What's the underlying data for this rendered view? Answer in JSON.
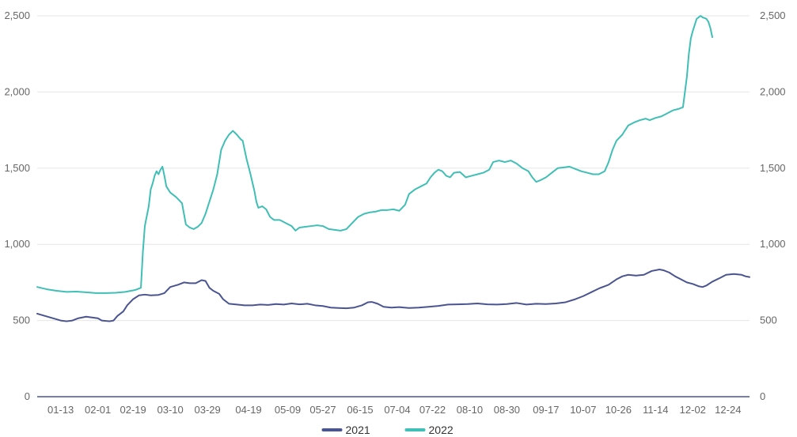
{
  "chart_data": {
    "type": "line",
    "title": "",
    "xlabel": "",
    "ylabel": "",
    "ylim": [
      0,
      2500
    ],
    "yticks": [
      0,
      500,
      1000,
      1500,
      2000,
      2500
    ],
    "ytick_labels": [
      "0",
      "500",
      "1,000",
      "1,500",
      "2,000",
      "2,500"
    ],
    "x_range_days": [
      0,
      364
    ],
    "x_tick_positions": [
      12,
      31,
      49,
      68,
      87,
      108,
      128,
      146,
      165,
      184,
      202,
      221,
      240,
      260,
      279,
      297,
      316,
      335,
      353
    ],
    "xtick_labels": [
      "01-13",
      "02-01",
      "02-19",
      "03-10",
      "03-29",
      "04-19",
      "05-09",
      "05-27",
      "06-15",
      "07-04",
      "07-22",
      "08-10",
      "08-30",
      "09-17",
      "10-07",
      "10-26",
      "11-14",
      "12-02",
      "12-24"
    ],
    "grid": true,
    "legend_position": "bottom",
    "series": [
      {
        "name": "2021",
        "color": "#4a5490",
        "points": [
          [
            0,
            545
          ],
          [
            4,
            530
          ],
          [
            8,
            515
          ],
          [
            12,
            500
          ],
          [
            15,
            495
          ],
          [
            18,
            500
          ],
          [
            21,
            515
          ],
          [
            25,
            525
          ],
          [
            28,
            520
          ],
          [
            31,
            515
          ],
          [
            33,
            500
          ],
          [
            37,
            495
          ],
          [
            39,
            500
          ],
          [
            41,
            530
          ],
          [
            44,
            560
          ],
          [
            46,
            600
          ],
          [
            49,
            640
          ],
          [
            52,
            665
          ],
          [
            55,
            670
          ],
          [
            58,
            665
          ],
          [
            62,
            668
          ],
          [
            65,
            680
          ],
          [
            68,
            720
          ],
          [
            72,
            735
          ],
          [
            75,
            750
          ],
          [
            78,
            745
          ],
          [
            81,
            745
          ],
          [
            84,
            765
          ],
          [
            86,
            760
          ],
          [
            88,
            715
          ],
          [
            90,
            695
          ],
          [
            93,
            675
          ],
          [
            95,
            640
          ],
          [
            98,
            610
          ],
          [
            102,
            605
          ],
          [
            106,
            600
          ],
          [
            110,
            600
          ],
          [
            114,
            605
          ],
          [
            118,
            602
          ],
          [
            122,
            608
          ],
          [
            126,
            605
          ],
          [
            130,
            612
          ],
          [
            134,
            606
          ],
          [
            138,
            610
          ],
          [
            142,
            600
          ],
          [
            146,
            595
          ],
          [
            150,
            585
          ],
          [
            154,
            582
          ],
          [
            158,
            580
          ],
          [
            162,
            585
          ],
          [
            166,
            600
          ],
          [
            169,
            620
          ],
          [
            171,
            622
          ],
          [
            174,
            610
          ],
          [
            177,
            590
          ],
          [
            181,
            585
          ],
          [
            185,
            588
          ],
          [
            190,
            582
          ],
          [
            195,
            585
          ],
          [
            200,
            590
          ],
          [
            205,
            596
          ],
          [
            210,
            605
          ],
          [
            215,
            606
          ],
          [
            220,
            608
          ],
          [
            225,
            612
          ],
          [
            230,
            606
          ],
          [
            235,
            605
          ],
          [
            240,
            608
          ],
          [
            245,
            615
          ],
          [
            250,
            605
          ],
          [
            255,
            610
          ],
          [
            260,
            608
          ],
          [
            265,
            612
          ],
          [
            270,
            620
          ],
          [
            275,
            640
          ],
          [
            279,
            660
          ],
          [
            283,
            685
          ],
          [
            287,
            710
          ],
          [
            292,
            735
          ],
          [
            296,
            770
          ],
          [
            299,
            790
          ],
          [
            302,
            800
          ],
          [
            306,
            795
          ],
          [
            310,
            800
          ],
          [
            314,
            825
          ],
          [
            318,
            835
          ],
          [
            320,
            830
          ],
          [
            323,
            815
          ],
          [
            326,
            790
          ],
          [
            329,
            770
          ],
          [
            332,
            750
          ],
          [
            335,
            740
          ],
          [
            338,
            725
          ],
          [
            340,
            720
          ],
          [
            342,
            730
          ],
          [
            345,
            755
          ],
          [
            349,
            780
          ],
          [
            352,
            800
          ],
          [
            356,
            805
          ],
          [
            360,
            800
          ],
          [
            362,
            790
          ],
          [
            364,
            785
          ]
        ]
      },
      {
        "name": "2022",
        "color": "#3fbfb5",
        "points": [
          [
            0,
            720
          ],
          [
            5,
            705
          ],
          [
            10,
            695
          ],
          [
            15,
            688
          ],
          [
            20,
            690
          ],
          [
            25,
            685
          ],
          [
            30,
            680
          ],
          [
            35,
            680
          ],
          [
            40,
            682
          ],
          [
            45,
            688
          ],
          [
            50,
            700
          ],
          [
            53,
            715
          ],
          [
            54,
            950
          ],
          [
            55,
            1120
          ],
          [
            57,
            1250
          ],
          [
            58,
            1360
          ],
          [
            59,
            1400
          ],
          [
            60,
            1450
          ],
          [
            61,
            1480
          ],
          [
            62,
            1460
          ],
          [
            63,
            1490
          ],
          [
            64,
            1510
          ],
          [
            65,
            1450
          ],
          [
            66,
            1380
          ],
          [
            68,
            1340
          ],
          [
            71,
            1310
          ],
          [
            74,
            1270
          ],
          [
            75,
            1200
          ],
          [
            76,
            1130
          ],
          [
            78,
            1110
          ],
          [
            80,
            1100
          ],
          [
            82,
            1115
          ],
          [
            84,
            1140
          ],
          [
            86,
            1200
          ],
          [
            88,
            1280
          ],
          [
            90,
            1360
          ],
          [
            92,
            1460
          ],
          [
            94,
            1620
          ],
          [
            96,
            1680
          ],
          [
            98,
            1720
          ],
          [
            100,
            1745
          ],
          [
            102,
            1720
          ],
          [
            104,
            1690
          ],
          [
            105,
            1680
          ],
          [
            107,
            1560
          ],
          [
            109,
            1460
          ],
          [
            111,
            1350
          ],
          [
            112,
            1280
          ],
          [
            113,
            1240
          ],
          [
            115,
            1250
          ],
          [
            117,
            1230
          ],
          [
            119,
            1180
          ],
          [
            121,
            1160
          ],
          [
            124,
            1160
          ],
          [
            127,
            1140
          ],
          [
            130,
            1120
          ],
          [
            132,
            1090
          ],
          [
            134,
            1110
          ],
          [
            137,
            1115
          ],
          [
            140,
            1120
          ],
          [
            143,
            1125
          ],
          [
            146,
            1120
          ],
          [
            149,
            1100
          ],
          [
            152,
            1095
          ],
          [
            155,
            1090
          ],
          [
            158,
            1100
          ],
          [
            161,
            1140
          ],
          [
            164,
            1180
          ],
          [
            167,
            1200
          ],
          [
            170,
            1210
          ],
          [
            173,
            1215
          ],
          [
            176,
            1225
          ],
          [
            179,
            1225
          ],
          [
            182,
            1230
          ],
          [
            185,
            1220
          ],
          [
            188,
            1260
          ],
          [
            190,
            1330
          ],
          [
            193,
            1360
          ],
          [
            196,
            1380
          ],
          [
            199,
            1400
          ],
          [
            201,
            1440
          ],
          [
            203,
            1470
          ],
          [
            205,
            1490
          ],
          [
            207,
            1480
          ],
          [
            209,
            1450
          ],
          [
            211,
            1440
          ],
          [
            213,
            1470
          ],
          [
            216,
            1475
          ],
          [
            219,
            1440
          ],
          [
            222,
            1450
          ],
          [
            225,
            1460
          ],
          [
            228,
            1470
          ],
          [
            231,
            1490
          ],
          [
            233,
            1540
          ],
          [
            236,
            1550
          ],
          [
            239,
            1540
          ],
          [
            242,
            1550
          ],
          [
            245,
            1530
          ],
          [
            248,
            1500
          ],
          [
            251,
            1480
          ],
          [
            253,
            1440
          ],
          [
            255,
            1410
          ],
          [
            257,
            1420
          ],
          [
            260,
            1440
          ],
          [
            263,
            1470
          ],
          [
            266,
            1500
          ],
          [
            269,
            1505
          ],
          [
            272,
            1510
          ],
          [
            275,
            1495
          ],
          [
            278,
            1480
          ],
          [
            281,
            1470
          ],
          [
            284,
            1460
          ],
          [
            287,
            1460
          ],
          [
            290,
            1480
          ],
          [
            292,
            1540
          ],
          [
            294,
            1620
          ],
          [
            296,
            1680
          ],
          [
            299,
            1720
          ],
          [
            302,
            1780
          ],
          [
            305,
            1800
          ],
          [
            308,
            1815
          ],
          [
            311,
            1825
          ],
          [
            313,
            1815
          ],
          [
            316,
            1830
          ],
          [
            319,
            1840
          ],
          [
            322,
            1860
          ],
          [
            325,
            1880
          ],
          [
            328,
            1890
          ],
          [
            330,
            1900
          ],
          [
            331,
            2000
          ],
          [
            332,
            2100
          ],
          [
            333,
            2250
          ],
          [
            334,
            2350
          ],
          [
            335,
            2400
          ],
          [
            336,
            2440
          ],
          [
            337,
            2480
          ],
          [
            338,
            2490
          ],
          [
            339,
            2500
          ],
          [
            340,
            2490
          ],
          [
            342,
            2480
          ],
          [
            343,
            2460
          ],
          [
            344,
            2420
          ],
          [
            345,
            2360
          ]
        ]
      }
    ]
  }
}
